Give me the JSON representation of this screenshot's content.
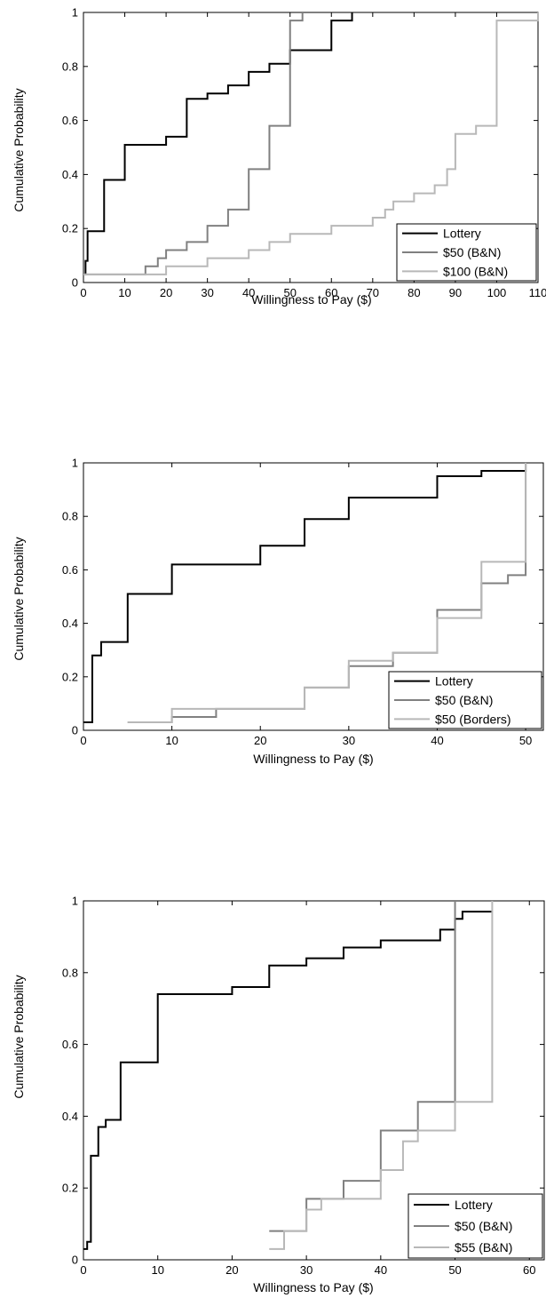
{
  "colors": {
    "lottery": "#000000",
    "mid_gray": "#808080",
    "light_gray": "#b8b8b8",
    "axis": "#000000",
    "background": "#ffffff"
  },
  "chart_data": [
    {
      "type": "line",
      "step": "post",
      "title": "",
      "xlabel": "Willingness to Pay ($)",
      "ylabel": "Cumulative Probability",
      "xlim": [
        0,
        110
      ],
      "ylim": [
        0,
        1
      ],
      "xticks": [
        0,
        10,
        20,
        30,
        40,
        50,
        60,
        70,
        80,
        90,
        100,
        110
      ],
      "yticks": [
        0,
        0.2,
        0.4,
        0.6,
        0.8,
        1
      ],
      "ytick_labels": [
        "0",
        "0.2",
        "0.4",
        "0.6",
        "0.8",
        "1"
      ],
      "legend_position": "bottom-right",
      "series": [
        {
          "name": "Lottery",
          "color": "#000000",
          "x": [
            0,
            0.5,
            1,
            2,
            5,
            10,
            20,
            25,
            30,
            35,
            40,
            45,
            50,
            60,
            65
          ],
          "y": [
            0.03,
            0.08,
            0.19,
            0.19,
            0.38,
            0.51,
            0.54,
            0.68,
            0.7,
            0.73,
            0.78,
            0.81,
            0.86,
            0.97,
            1.0
          ]
        },
        {
          "name": "$50 (B&N)",
          "color": "#808080",
          "x": [
            0,
            15,
            18,
            20,
            25,
            30,
            35,
            40,
            45,
            50,
            53
          ],
          "y": [
            0.03,
            0.06,
            0.09,
            0.12,
            0.15,
            0.21,
            0.27,
            0.42,
            0.58,
            0.97,
            1.0
          ]
        },
        {
          "name": "$100 (B&N)",
          "color": "#b8b8b8",
          "x": [
            0,
            20,
            30,
            40,
            45,
            50,
            60,
            70,
            73,
            75,
            80,
            85,
            88,
            90,
            95,
            100,
            110
          ],
          "y": [
            0.03,
            0.06,
            0.09,
            0.12,
            0.15,
            0.18,
            0.21,
            0.24,
            0.27,
            0.3,
            0.33,
            0.36,
            0.42,
            0.55,
            0.58,
            0.97,
            1.0
          ]
        }
      ]
    },
    {
      "type": "line",
      "step": "post",
      "title": "",
      "xlabel": "Willingness to Pay ($)",
      "ylabel": "Cumulative Probability",
      "xlim": [
        0,
        52
      ],
      "ylim": [
        0,
        1
      ],
      "xticks": [
        0,
        10,
        20,
        30,
        40,
        50
      ],
      "yticks": [
        0,
        0.2,
        0.4,
        0.6,
        0.8,
        1
      ],
      "ytick_labels": [
        "0",
        "0.2",
        "0.4",
        "0.6",
        "0.8",
        "1"
      ],
      "legend_position": "bottom-right",
      "series": [
        {
          "name": "Lottery",
          "color": "#000000",
          "x": [
            0,
            1,
            2,
            5,
            10,
            20,
            25,
            30,
            40,
            45,
            50
          ],
          "y": [
            0.03,
            0.28,
            0.33,
            0.51,
            0.62,
            0.69,
            0.79,
            0.87,
            0.95,
            0.97,
            1.0
          ]
        },
        {
          "name": "$50 (B&N)",
          "color": "#808080",
          "x": [
            5,
            10,
            15,
            25,
            30,
            35,
            40,
            45,
            46,
            48,
            50
          ],
          "y": [
            0.03,
            0.05,
            0.08,
            0.16,
            0.24,
            0.29,
            0.45,
            0.55,
            0.55,
            0.58,
            1.0
          ]
        },
        {
          "name": "$50 (Borders)",
          "color": "#b8b8b8",
          "x": [
            5,
            10,
            25,
            30,
            35,
            40,
            45,
            50
          ],
          "y": [
            0.03,
            0.08,
            0.16,
            0.26,
            0.29,
            0.42,
            0.63,
            1.0
          ]
        }
      ]
    },
    {
      "type": "line",
      "step": "post",
      "title": "",
      "xlabel": "Willingness to Pay ($)",
      "ylabel": "Cumulative Probability",
      "xlim": [
        0,
        62
      ],
      "ylim": [
        0,
        1
      ],
      "xticks": [
        0,
        10,
        20,
        30,
        40,
        50,
        60
      ],
      "yticks": [
        0,
        0.2,
        0.4,
        0.6,
        0.8,
        1
      ],
      "ytick_labels": [
        "0",
        "0.2",
        "0.4",
        "0.6",
        "0.8",
        "1"
      ],
      "legend_position": "bottom-right",
      "series": [
        {
          "name": "Lottery",
          "color": "#000000",
          "x": [
            0,
            0.5,
            1,
            2,
            3,
            5,
            10,
            20,
            25,
            30,
            35,
            40,
            45,
            48,
            50,
            51,
            55
          ],
          "y": [
            0.03,
            0.05,
            0.29,
            0.37,
            0.39,
            0.55,
            0.74,
            0.76,
            0.82,
            0.84,
            0.87,
            0.89,
            0.89,
            0.92,
            0.95,
            0.97,
            0.97
          ]
        },
        {
          "name": "$50 (B&N)",
          "color": "#808080",
          "x": [
            25,
            30,
            35,
            40,
            45,
            50
          ],
          "y": [
            0.08,
            0.17,
            0.22,
            0.36,
            0.44,
            1.0
          ]
        },
        {
          "name": "$55 (B&N)",
          "color": "#b8b8b8",
          "x": [
            25,
            26,
            27,
            30,
            32,
            40,
            41,
            43,
            45,
            50,
            55
          ],
          "y": [
            0.03,
            0.03,
            0.08,
            0.14,
            0.17,
            0.25,
            0.25,
            0.33,
            0.36,
            0.44,
            1.0
          ]
        }
      ]
    }
  ]
}
